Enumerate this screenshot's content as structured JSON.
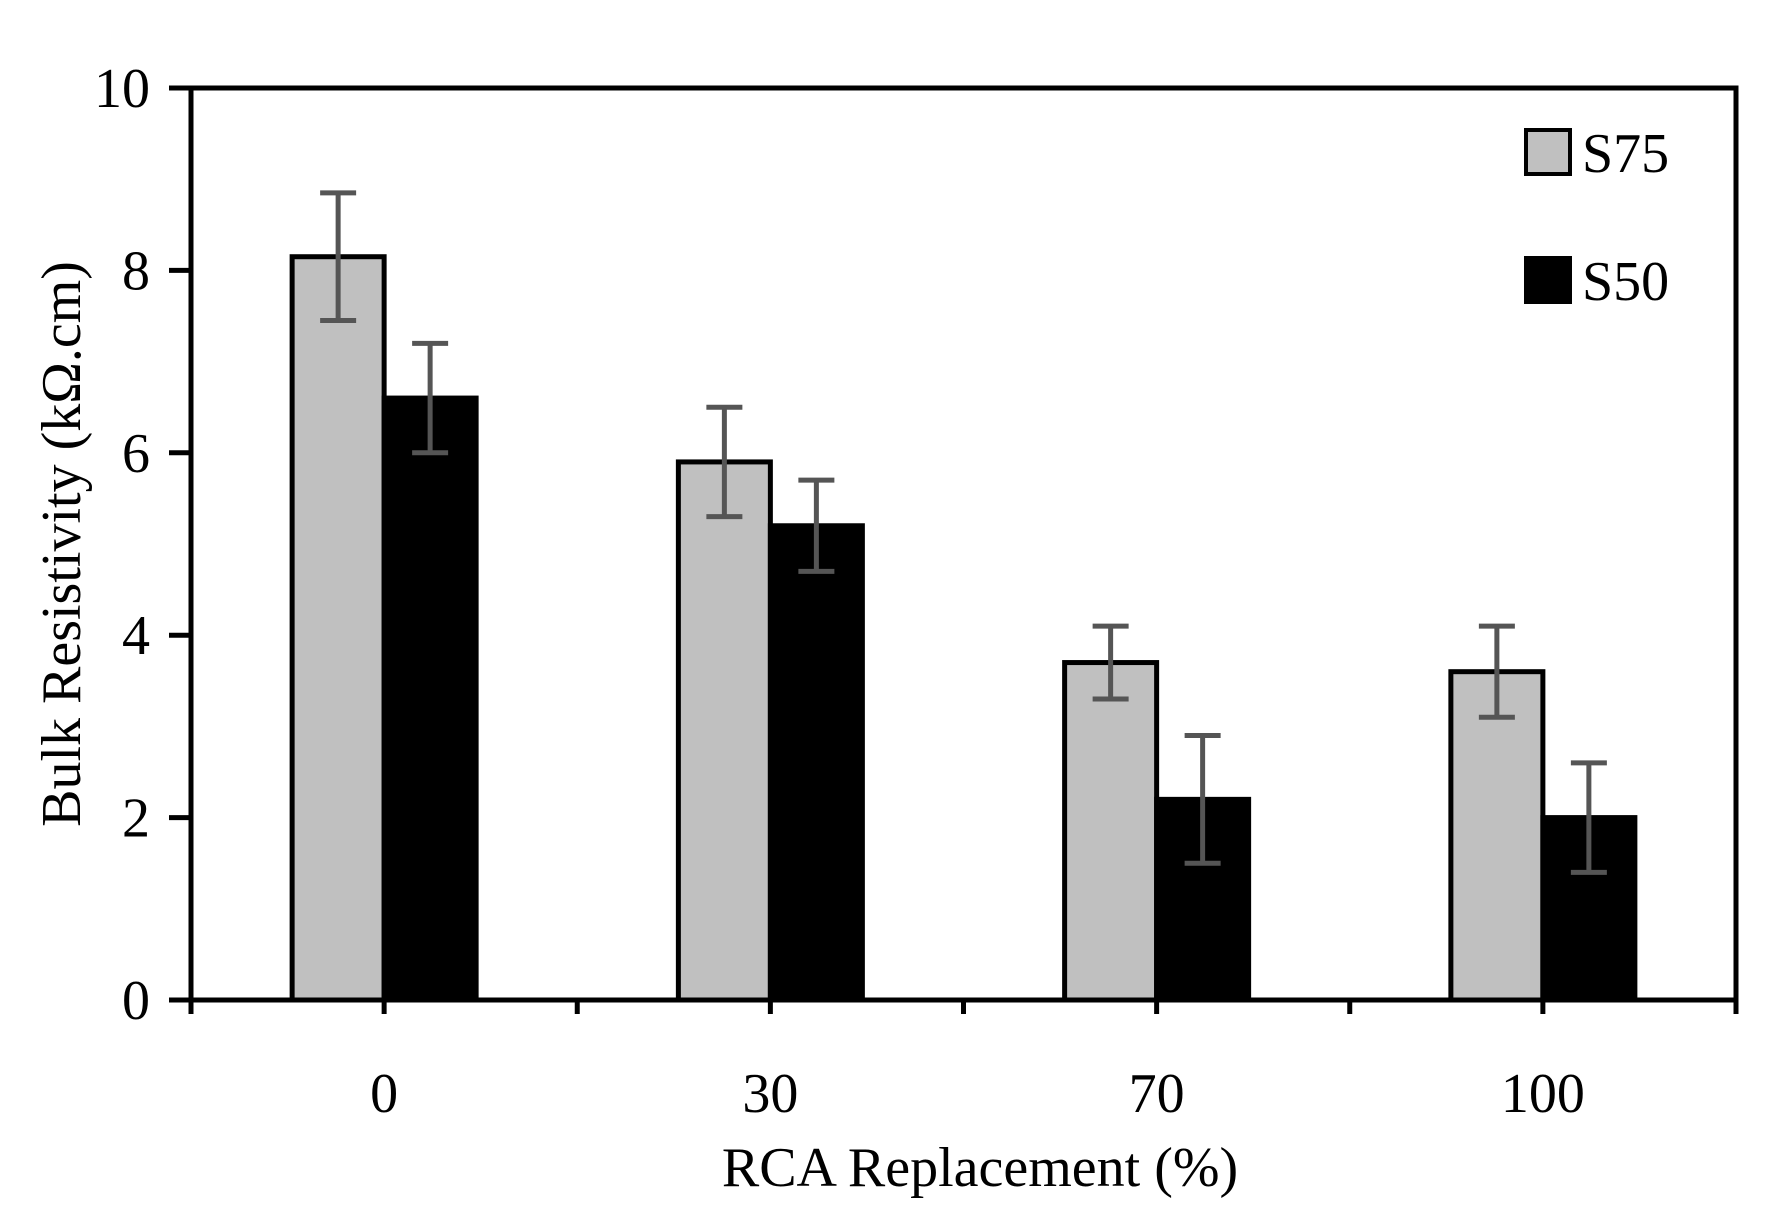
{
  "chart_data": {
    "type": "bar",
    "xlabel": "RCA Replacement (%)",
    "ylabel": "Bulk Resistivity (kΩ.cm)",
    "categories": [
      "0",
      "30",
      "70",
      "100"
    ],
    "ylim": [
      0,
      10
    ],
    "yticks": [
      "0",
      "2",
      "4",
      "6",
      "8",
      "10"
    ],
    "grid": false,
    "legend_position": "top-right",
    "series": [
      {
        "name": "S75",
        "color": "#c0c0c0",
        "values": [
          8.15,
          5.9,
          3.7,
          3.6
        ],
        "errors": [
          0.7,
          0.6,
          0.4,
          0.5
        ]
      },
      {
        "name": "S50",
        "color": "#000000",
        "values": [
          6.6,
          5.2,
          2.2,
          2.0
        ],
        "errors": [
          0.6,
          0.5,
          0.7,
          0.6
        ]
      }
    ]
  }
}
